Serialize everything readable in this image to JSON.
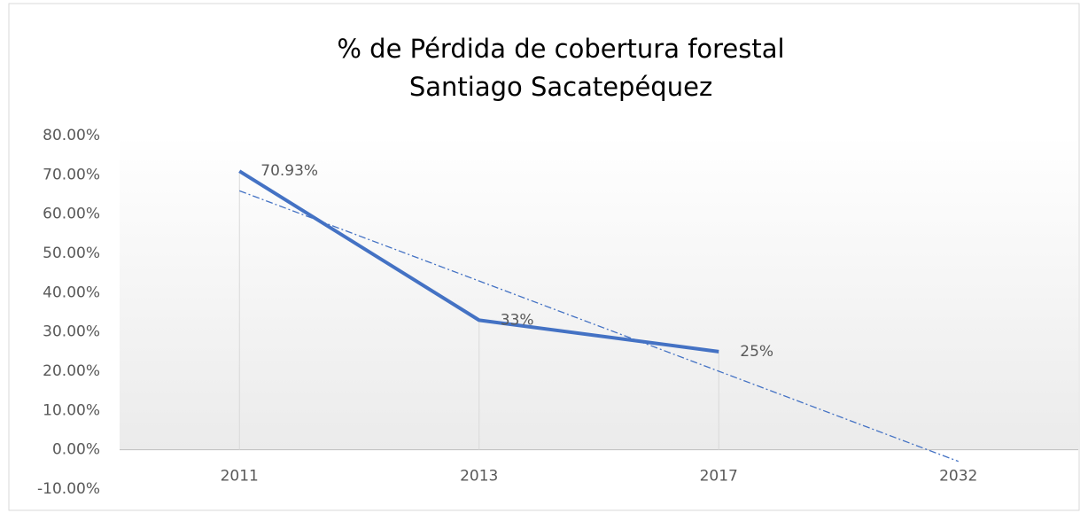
{
  "chart_data": {
    "type": "line",
    "title": [
      "% de Pérdida de cobertura forestal",
      "Santiago Sacatepéquez"
    ],
    "categories": [
      "2011",
      "2013",
      "2017",
      "2032"
    ],
    "series": [
      {
        "color": "#4472c4",
        "values": [
          70.93,
          33,
          25,
          null
        ],
        "value_labels": [
          "70.93%",
          "33%",
          "25%",
          null
        ]
      }
    ],
    "trendline": {
      "color": "#4472c4",
      "values": [
        65.94,
        42.98,
        20.01,
        -2.95
      ]
    },
    "ylim": [
      -10,
      80
    ],
    "yticks": [
      {
        "value": -10,
        "label": "-10.00%"
      },
      {
        "value": 0,
        "label": "0.00%"
      },
      {
        "value": 10,
        "label": "10.00%"
      },
      {
        "value": 20,
        "label": "20.00%"
      },
      {
        "value": 30,
        "label": "30.00%"
      },
      {
        "value": 40,
        "label": "40.00%"
      },
      {
        "value": 50,
        "label": "50.00%"
      },
      {
        "value": 60,
        "label": "60.00%"
      },
      {
        "value": 70,
        "label": "70.00%"
      },
      {
        "value": 80,
        "label": "80.00%"
      }
    ],
    "drop_lines": true,
    "grid": false
  }
}
